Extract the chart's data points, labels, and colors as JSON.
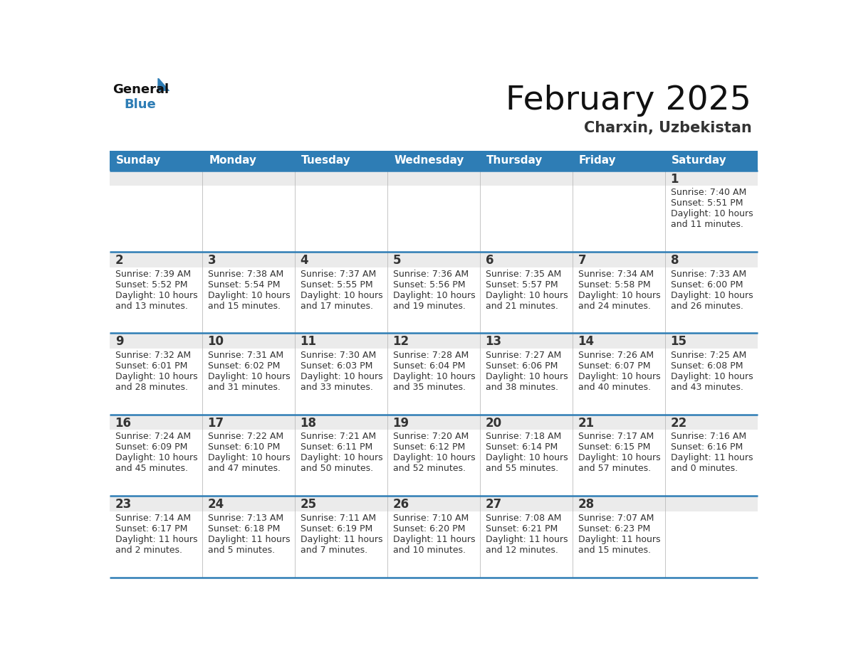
{
  "title": "February 2025",
  "subtitle": "Charxin, Uzbekistan",
  "days_of_week": [
    "Sunday",
    "Monday",
    "Tuesday",
    "Wednesday",
    "Thursday",
    "Friday",
    "Saturday"
  ],
  "header_bg": "#2E7DB5",
  "header_text": "#FFFFFF",
  "cell_bg_number": "#EBEBEB",
  "cell_bg_content": "#FFFFFF",
  "day_number_color": "#333333",
  "info_text_color": "#333333",
  "line_color": "#2E7DB5",
  "title_color": "#111111",
  "subtitle_color": "#333333",
  "logo_general_color": "#111111",
  "logo_blue_color": "#2E7DB5",
  "logo_triangle_color": "#2E7DB5",
  "calendar_data": [
    [
      null,
      null,
      null,
      null,
      null,
      null,
      {
        "day": 1,
        "sunrise": "7:40 AM",
        "sunset": "5:51 PM",
        "daylight_h": "10 hours",
        "daylight_m": "and 11 minutes."
      }
    ],
    [
      {
        "day": 2,
        "sunrise": "7:39 AM",
        "sunset": "5:52 PM",
        "daylight_h": "10 hours",
        "daylight_m": "and 13 minutes."
      },
      {
        "day": 3,
        "sunrise": "7:38 AM",
        "sunset": "5:54 PM",
        "daylight_h": "10 hours",
        "daylight_m": "and 15 minutes."
      },
      {
        "day": 4,
        "sunrise": "7:37 AM",
        "sunset": "5:55 PM",
        "daylight_h": "10 hours",
        "daylight_m": "and 17 minutes."
      },
      {
        "day": 5,
        "sunrise": "7:36 AM",
        "sunset": "5:56 PM",
        "daylight_h": "10 hours",
        "daylight_m": "and 19 minutes."
      },
      {
        "day": 6,
        "sunrise": "7:35 AM",
        "sunset": "5:57 PM",
        "daylight_h": "10 hours",
        "daylight_m": "and 21 minutes."
      },
      {
        "day": 7,
        "sunrise": "7:34 AM",
        "sunset": "5:58 PM",
        "daylight_h": "10 hours",
        "daylight_m": "and 24 minutes."
      },
      {
        "day": 8,
        "sunrise": "7:33 AM",
        "sunset": "6:00 PM",
        "daylight_h": "10 hours",
        "daylight_m": "and 26 minutes."
      }
    ],
    [
      {
        "day": 9,
        "sunrise": "7:32 AM",
        "sunset": "6:01 PM",
        "daylight_h": "10 hours",
        "daylight_m": "and 28 minutes."
      },
      {
        "day": 10,
        "sunrise": "7:31 AM",
        "sunset": "6:02 PM",
        "daylight_h": "10 hours",
        "daylight_m": "and 31 minutes."
      },
      {
        "day": 11,
        "sunrise": "7:30 AM",
        "sunset": "6:03 PM",
        "daylight_h": "10 hours",
        "daylight_m": "and 33 minutes."
      },
      {
        "day": 12,
        "sunrise": "7:28 AM",
        "sunset": "6:04 PM",
        "daylight_h": "10 hours",
        "daylight_m": "and 35 minutes."
      },
      {
        "day": 13,
        "sunrise": "7:27 AM",
        "sunset": "6:06 PM",
        "daylight_h": "10 hours",
        "daylight_m": "and 38 minutes."
      },
      {
        "day": 14,
        "sunrise": "7:26 AM",
        "sunset": "6:07 PM",
        "daylight_h": "10 hours",
        "daylight_m": "and 40 minutes."
      },
      {
        "day": 15,
        "sunrise": "7:25 AM",
        "sunset": "6:08 PM",
        "daylight_h": "10 hours",
        "daylight_m": "and 43 minutes."
      }
    ],
    [
      {
        "day": 16,
        "sunrise": "7:24 AM",
        "sunset": "6:09 PM",
        "daylight_h": "10 hours",
        "daylight_m": "and 45 minutes."
      },
      {
        "day": 17,
        "sunrise": "7:22 AM",
        "sunset": "6:10 PM",
        "daylight_h": "10 hours",
        "daylight_m": "and 47 minutes."
      },
      {
        "day": 18,
        "sunrise": "7:21 AM",
        "sunset": "6:11 PM",
        "daylight_h": "10 hours",
        "daylight_m": "and 50 minutes."
      },
      {
        "day": 19,
        "sunrise": "7:20 AM",
        "sunset": "6:12 PM",
        "daylight_h": "10 hours",
        "daylight_m": "and 52 minutes."
      },
      {
        "day": 20,
        "sunrise": "7:18 AM",
        "sunset": "6:14 PM",
        "daylight_h": "10 hours",
        "daylight_m": "and 55 minutes."
      },
      {
        "day": 21,
        "sunrise": "7:17 AM",
        "sunset": "6:15 PM",
        "daylight_h": "10 hours",
        "daylight_m": "and 57 minutes."
      },
      {
        "day": 22,
        "sunrise": "7:16 AM",
        "sunset": "6:16 PM",
        "daylight_h": "11 hours",
        "daylight_m": "and 0 minutes."
      }
    ],
    [
      {
        "day": 23,
        "sunrise": "7:14 AM",
        "sunset": "6:17 PM",
        "daylight_h": "11 hours",
        "daylight_m": "and 2 minutes."
      },
      {
        "day": 24,
        "sunrise": "7:13 AM",
        "sunset": "6:18 PM",
        "daylight_h": "11 hours",
        "daylight_m": "and 5 minutes."
      },
      {
        "day": 25,
        "sunrise": "7:11 AM",
        "sunset": "6:19 PM",
        "daylight_h": "11 hours",
        "daylight_m": "and 7 minutes."
      },
      {
        "day": 26,
        "sunrise": "7:10 AM",
        "sunset": "6:20 PM",
        "daylight_h": "11 hours",
        "daylight_m": "and 10 minutes."
      },
      {
        "day": 27,
        "sunrise": "7:08 AM",
        "sunset": "6:21 PM",
        "daylight_h": "11 hours",
        "daylight_m": "and 12 minutes."
      },
      {
        "day": 28,
        "sunrise": "7:07 AM",
        "sunset": "6:23 PM",
        "daylight_h": "11 hours",
        "daylight_m": "and 15 minutes."
      },
      null
    ]
  ]
}
